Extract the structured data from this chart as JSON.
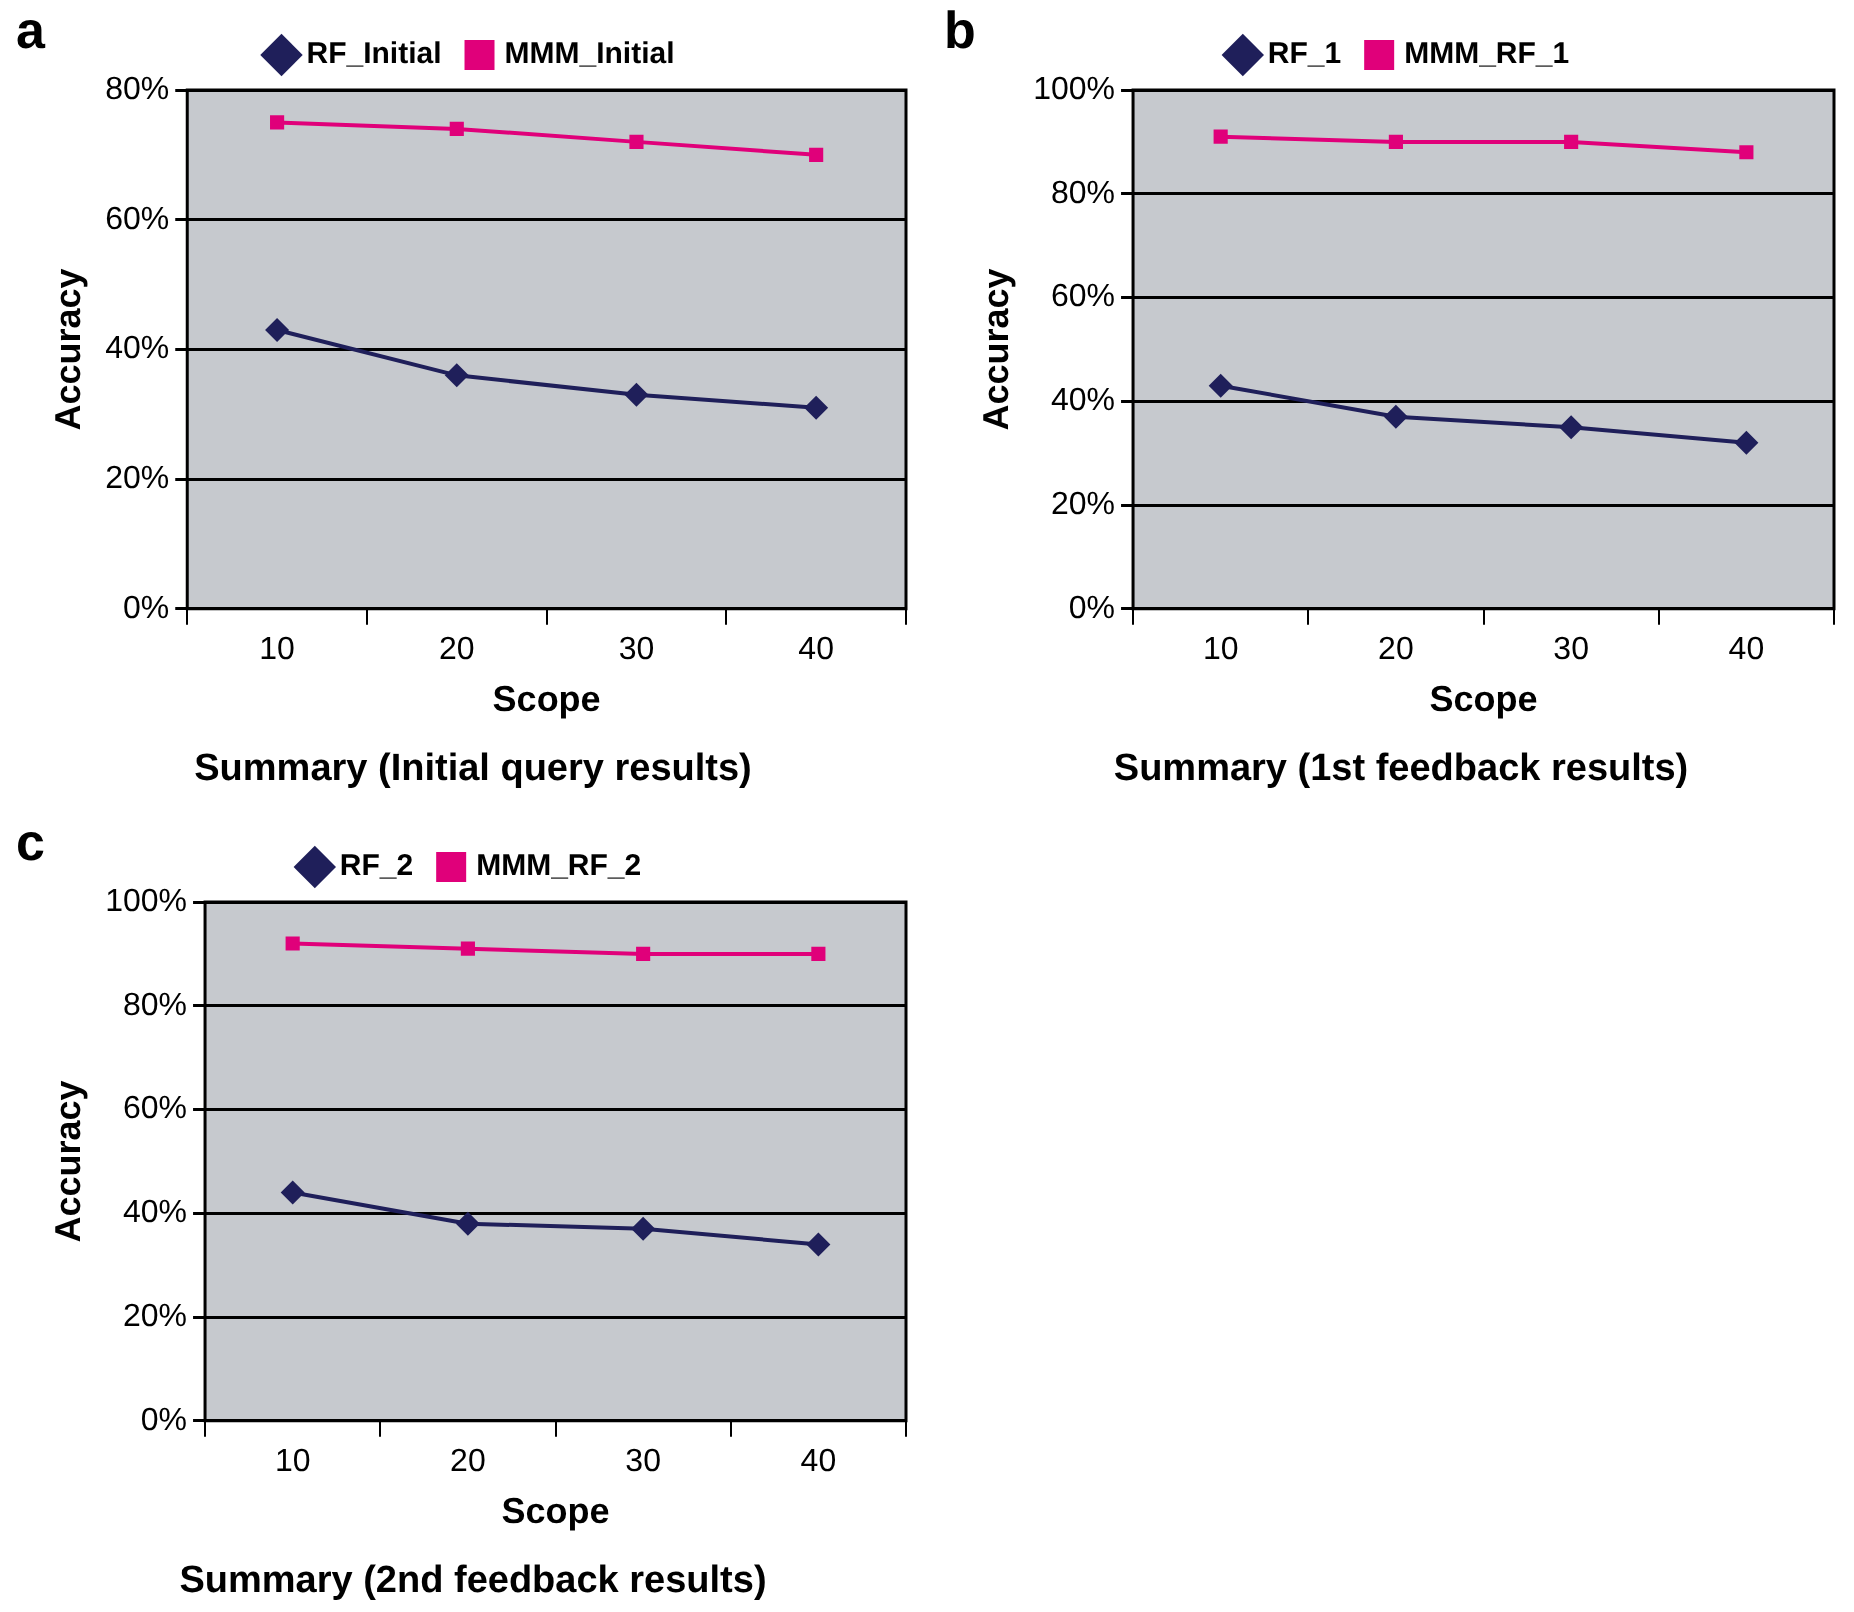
{
  "chart_data": [
    {
      "type": "line",
      "annotations": [
        "a"
      ],
      "title": "Summary (Initial query results)",
      "xlabel": "Scope",
      "ylabel": "Accuracy",
      "categories": [
        "10",
        "20",
        "30",
        "40"
      ],
      "series": [
        {
          "name": "RF_Initial",
          "color": "#1f1f5a",
          "marker": "diamond",
          "values": [
            43,
            36,
            33,
            31
          ]
        },
        {
          "name": "MMM_Initial",
          "color": "#e0007a",
          "marker": "square",
          "values": [
            75,
            74,
            72,
            70
          ]
        }
      ],
      "ylim": [
        0,
        80
      ],
      "yticks": [
        {
          "value": 0,
          "label": "0%"
        },
        {
          "value": 20,
          "label": "20%"
        },
        {
          "value": 40,
          "label": "40%"
        },
        {
          "value": 60,
          "label": "60%"
        },
        {
          "value": 80,
          "label": "80%"
        }
      ],
      "grid": "y",
      "legend": "top"
    },
    {
      "type": "line",
      "annotations": [
        "b"
      ],
      "title": "Summary (1st feedback results)",
      "xlabel": "Scope",
      "ylabel": "Accuracy",
      "categories": [
        "10",
        "20",
        "30",
        "40"
      ],
      "series": [
        {
          "name": "RF_1",
          "color": "#1f1f5a",
          "marker": "diamond",
          "values": [
            43,
            37,
            35,
            32
          ]
        },
        {
          "name": "MMM_RF_1",
          "color": "#e0007a",
          "marker": "square",
          "values": [
            91,
            90,
            90,
            88
          ]
        }
      ],
      "ylim": [
        0,
        100
      ],
      "yticks": [
        {
          "value": 0,
          "label": "0%"
        },
        {
          "value": 20,
          "label": "20%"
        },
        {
          "value": 40,
          "label": "40%"
        },
        {
          "value": 60,
          "label": "60%"
        },
        {
          "value": 80,
          "label": "80%"
        },
        {
          "value": 100,
          "label": "100%"
        }
      ],
      "grid": "y",
      "legend": "top"
    },
    {
      "type": "line",
      "annotations": [
        "c"
      ],
      "title": "Summary (2nd feedback results)",
      "xlabel": "Scope",
      "ylabel": "Accuracy",
      "categories": [
        "10",
        "20",
        "30",
        "40"
      ],
      "series": [
        {
          "name": "RF_2",
          "color": "#1f1f5a",
          "marker": "diamond",
          "values": [
            44,
            38,
            37,
            34
          ]
        },
        {
          "name": "MMM_RF_2",
          "color": "#e0007a",
          "marker": "square",
          "values": [
            92,
            91,
            90,
            90
          ]
        }
      ],
      "ylim": [
        0,
        100
      ],
      "yticks": [
        {
          "value": 0,
          "label": "0%"
        },
        {
          "value": 20,
          "label": "20%"
        },
        {
          "value": 40,
          "label": "40%"
        },
        {
          "value": 60,
          "label": "60%"
        },
        {
          "value": 80,
          "label": "80%"
        },
        {
          "value": 100,
          "label": "100%"
        }
      ],
      "grid": "y",
      "legend": "top"
    }
  ]
}
